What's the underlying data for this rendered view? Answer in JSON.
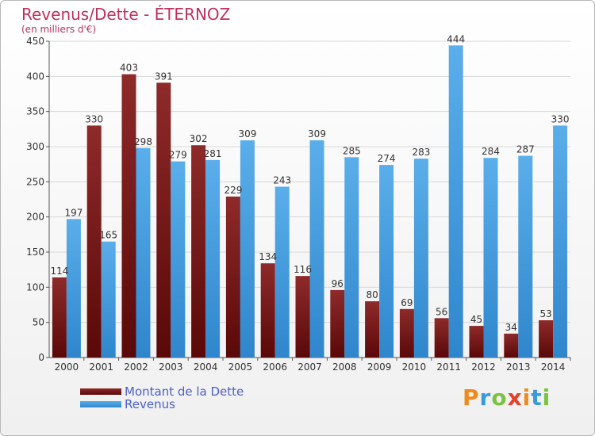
{
  "header": {
    "title": "Revenus/Dette - ÉTERNOZ",
    "subtitle": "(en milliers d'€)"
  },
  "brand": {
    "letters": [
      "P",
      "r",
      "o",
      "x",
      "i",
      "t",
      "i"
    ],
    "colors": [
      "#f08a1c",
      "#3a9ad9",
      "#7cc242",
      "#e8412a",
      "#f08a1c",
      "#3a9ad9",
      "#7cc242"
    ]
  },
  "chart_data": {
    "type": "bar",
    "title": "Revenus/Dette - ÉTERNOZ",
    "subtitle": "(en milliers d'€)",
    "categories": [
      "2000",
      "2001",
      "2002",
      "2003",
      "2004",
      "2005",
      "2006",
      "2007",
      "2008",
      "2009",
      "2010",
      "2011",
      "2012",
      "2013",
      "2014"
    ],
    "series": [
      {
        "name": "Montant de la Dette",
        "color": "#7a1a1a",
        "values": [
          114,
          330,
          403,
          391,
          302,
          229,
          134,
          116,
          96,
          80,
          69,
          56,
          45,
          34,
          53
        ]
      },
      {
        "name": "Revenus",
        "color": "#4aa3e6",
        "values": [
          197,
          165,
          298,
          279,
          281,
          309,
          243,
          309,
          285,
          274,
          283,
          444,
          284,
          287,
          330
        ]
      }
    ],
    "ylim": [
      0,
      450
    ],
    "yticks": [
      0,
      50,
      100,
      150,
      200,
      250,
      300,
      350,
      400,
      450
    ],
    "grid": true,
    "legend": "bottom-left"
  }
}
